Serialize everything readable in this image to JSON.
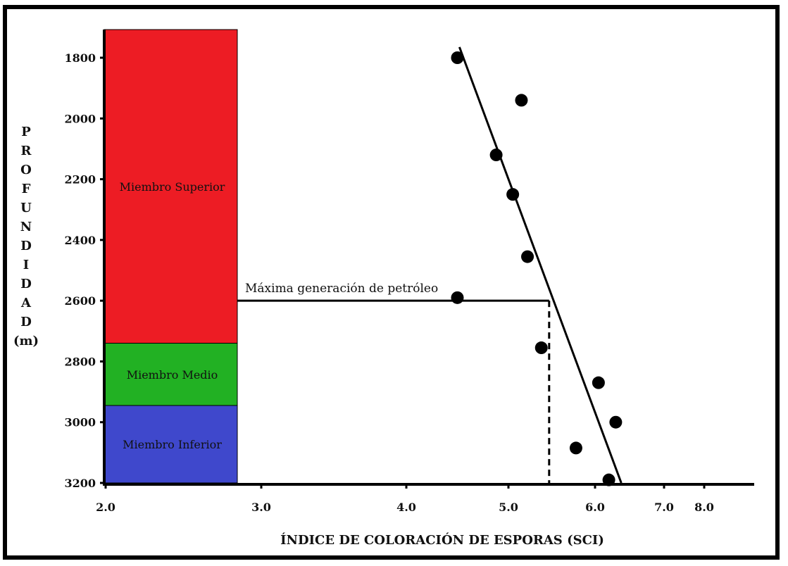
{
  "chart_data": {
    "type": "scatter",
    "xlabel": "ÍNDICE DE COLORACIÓN DE ESPORAS (SCI)",
    "ylabel_letters": [
      "P",
      "R",
      "O",
      "F",
      "U",
      "N",
      "D",
      "I",
      "D",
      "A",
      "D",
      "(m)"
    ],
    "x_ticks": [
      2.0,
      3.0,
      4.0,
      5.0,
      6.0,
      7.0,
      8.0
    ],
    "x_tick_labels": [
      "2.0",
      "3.0",
      "4.0",
      "5.0",
      "6.0",
      "7.0",
      "8.0"
    ],
    "x_scale": "log",
    "y_ticks": [
      1800,
      2000,
      2200,
      2400,
      2600,
      2800,
      3000,
      3200
    ],
    "y_tick_labels": [
      "1800",
      "2000",
      "2200",
      "2400",
      "2600",
      "2800",
      "3000",
      "3200"
    ],
    "ylim": [
      1720,
      3200
    ],
    "y_inverted": true,
    "points": [
      {
        "x": 4.5,
        "y": 1800
      },
      {
        "x": 5.15,
        "y": 1940
      },
      {
        "x": 4.88,
        "y": 2120
      },
      {
        "x": 5.05,
        "y": 2250
      },
      {
        "x": 5.22,
        "y": 2455
      },
      {
        "x": 4.5,
        "y": 2590
      },
      {
        "x": 5.38,
        "y": 2755
      },
      {
        "x": 6.05,
        "y": 2870
      },
      {
        "x": 6.3,
        "y": 3000
      },
      {
        "x": 5.78,
        "y": 3085
      },
      {
        "x": 6.2,
        "y": 3190
      }
    ],
    "trend_line": {
      "start": {
        "x": 4.52,
        "y": 1765
      },
      "end": {
        "x": 6.38,
        "y": 3200
      }
    },
    "members": [
      {
        "label": "Miembro Superior",
        "top": 1720,
        "bottom": 2740,
        "color": "#ed1c24"
      },
      {
        "label": "Miembro Medio",
        "top": 2740,
        "bottom": 2945,
        "color": "#22b123"
      },
      {
        "label": "Miembro Inferior",
        "top": 2945,
        "bottom": 3200,
        "color": "#3f48cc"
      }
    ],
    "annotation": {
      "text": "Máxima generación de petróleo",
      "depth": 2600,
      "x": 5.47
    }
  }
}
